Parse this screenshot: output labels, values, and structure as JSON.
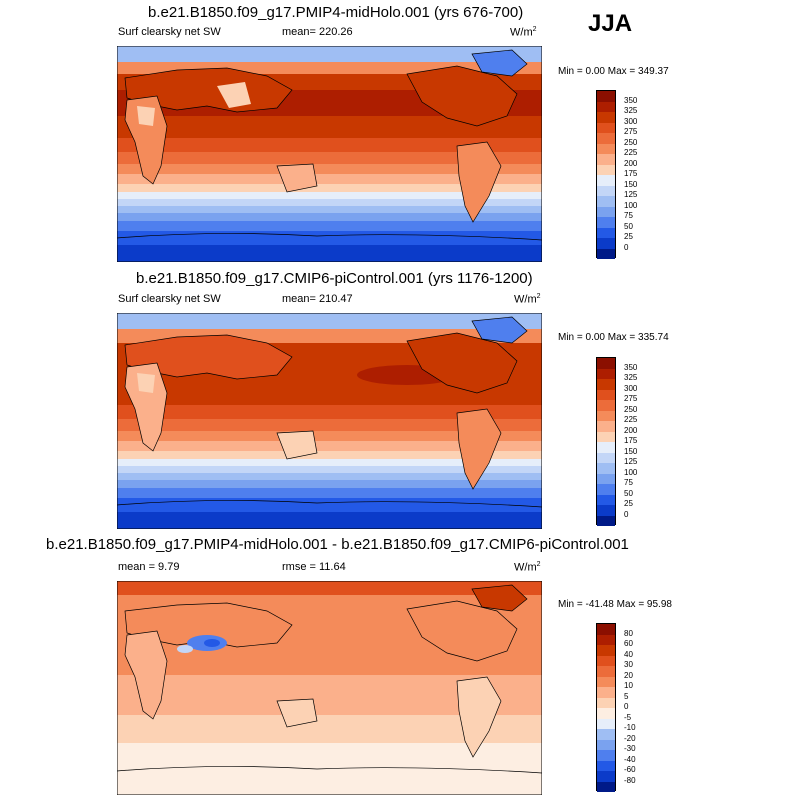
{
  "season": "JJA",
  "panels": [
    {
      "title": "b.e21.B1850.f09_g17.PMIP4-midHolo.001 (yrs 676-700)",
      "left_label": "Surf clearsky net SW",
      "center_label": "mean= 220.26",
      "units": "W/m",
      "units_sup": "2",
      "minmax": "Min =   0.00 Max = 349.37",
      "colorbar": {
        "labels": [
          "350",
          "325",
          "300",
          "275",
          "250",
          "225",
          "200",
          "175",
          "150",
          "125",
          "100",
          "75",
          "50",
          "25",
          "0"
        ],
        "colors": [
          "#8b0f00",
          "#ad1e00",
          "#c83800",
          "#e0501d",
          "#ec6c3a",
          "#f48b5a",
          "#fbb08b",
          "#fcd2b4",
          "#e6eefa",
          "#c3d6f7",
          "#9fbef3",
          "#7aa2ef",
          "#4f7fee",
          "#2359e6",
          "#0b3bc9",
          "#001a88"
        ]
      }
    },
    {
      "title": "b.e21.B1850.f09_g17.CMIP6-piControl.001 (yrs 1176-1200)",
      "left_label": "Surf clearsky net SW",
      "center_label": "mean= 210.47",
      "units": "W/m",
      "units_sup": "2",
      "minmax": "Min =   0.00 Max = 335.74",
      "colorbar": {
        "labels": [
          "350",
          "325",
          "300",
          "275",
          "250",
          "225",
          "200",
          "175",
          "150",
          "125",
          "100",
          "75",
          "50",
          "25",
          "0"
        ],
        "colors": [
          "#8b0f00",
          "#ad1e00",
          "#c83800",
          "#e0501d",
          "#ec6c3a",
          "#f48b5a",
          "#fbb08b",
          "#fcd2b4",
          "#e6eefa",
          "#c3d6f7",
          "#9fbef3",
          "#7aa2ef",
          "#4f7fee",
          "#2359e6",
          "#0b3bc9",
          "#001a88"
        ]
      }
    },
    {
      "title": "b.e21.B1850.f09_g17.PMIP4-midHolo.001 - b.e21.B1850.f09_g17.CMIP6-piControl.001",
      "left_label": "mean =   9.79",
      "center_label": "rmse =  11.64",
      "units": "W/m",
      "units_sup": "2",
      "minmax": "Min = -41.48 Max =  95.98",
      "colorbar": {
        "labels": [
          "80",
          "60",
          "40",
          "30",
          "20",
          "10",
          "5",
          "0",
          "-5",
          "-10",
          "-20",
          "-30",
          "-40",
          "-60",
          "-80"
        ],
        "colors": [
          "#8b0f00",
          "#ad1e00",
          "#c83800",
          "#e0501d",
          "#ec6c3a",
          "#f48b5a",
          "#fbb08b",
          "#fcd2b4",
          "#fdeee2",
          "#e6eefa",
          "#9fbef3",
          "#7aa2ef",
          "#4f7fee",
          "#2359e6",
          "#0b3bc9",
          "#001a88"
        ]
      }
    }
  ]
}
